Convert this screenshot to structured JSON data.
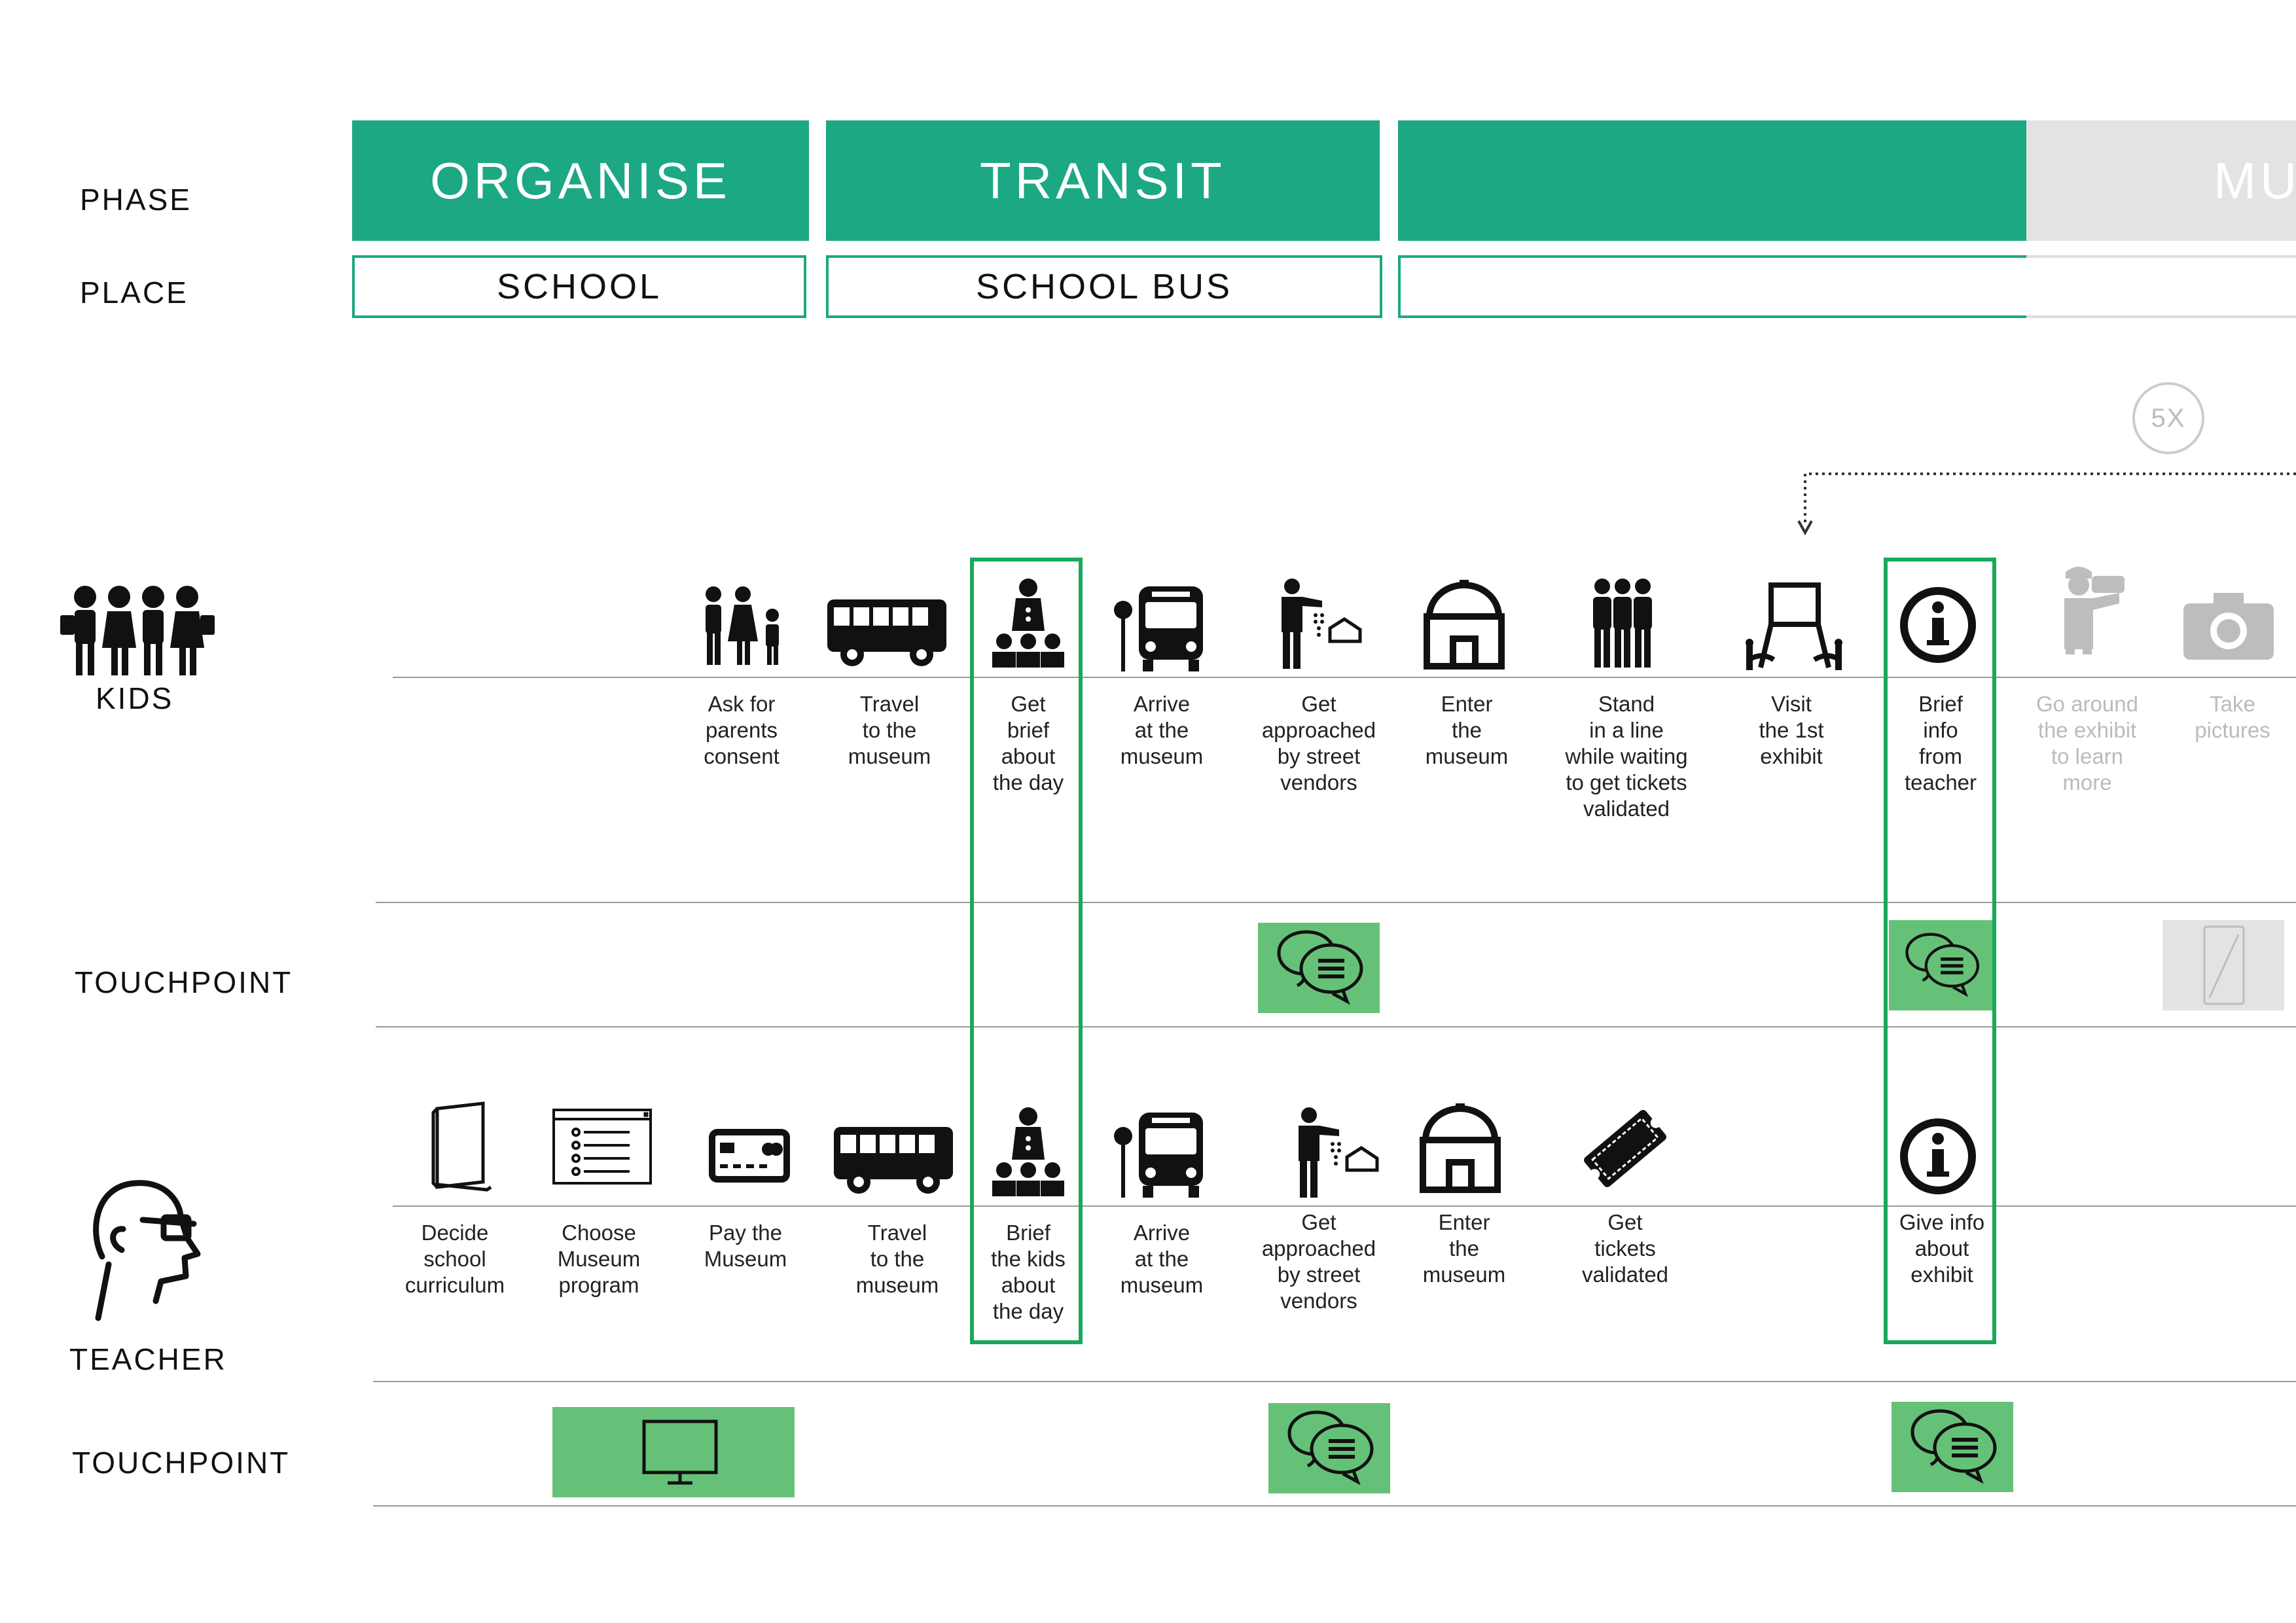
{
  "labels": {
    "phase": "PHASE",
    "place": "PLACE",
    "kids": "KIDS",
    "touchpoint": "TOUCHPOINT",
    "teacher": "TEACHER"
  },
  "phases": [
    "ORGANISE",
    "TRANSIT",
    "",
    "MUS"
  ],
  "places": [
    "SCHOOL",
    "SCHOOL BUS",
    ""
  ],
  "repeat_badge": "5X",
  "kids_steps": [
    "Ask for\nparents\nconsent",
    "Travel\nto the\nmuseum",
    "Get\nbrief\nabout\nthe day",
    "Arrive\nat the\nmuseum",
    "Get\napproached\nby street\nvendors",
    "Enter\nthe\nmuseum",
    "Stand\nin a line\nwhile waiting\nto get tickets\nvalidated",
    "Visit\nthe 1st\nexhibit",
    "Brief\ninfo\nfrom\nteacher",
    "Go around\nthe exhibit\nto learn\nmore",
    "Take\npictures"
  ],
  "teacher_steps": [
    "Decide\nschool\ncurriculum",
    "Choose\nMuseum\nprogram",
    "Pay the\nMuseum",
    "Travel\nto the\nmuseum",
    "Brief\nthe kids\nabout\nthe day",
    "Arrive\nat the\nmuseum",
    "Get\napproached\nby street\nvendors",
    "Enter\nthe\nmuseum",
    "Get\ntickets\nvalidated",
    "Give info\nabout\nexhibit"
  ],
  "icons": {
    "kids": [
      "family-icon",
      "bus-icon",
      "guide-group-icon",
      "bus-stop-icon",
      "street-vendor-icon",
      "museum-icon",
      "queue-icon",
      "exhibit-icon",
      "info-icon",
      "photographer-icon",
      "camera-icon"
    ],
    "teacher": [
      "curriculum-book-icon",
      "program-list-icon",
      "credit-card-icon",
      "bus-icon",
      "guide-group-icon",
      "bus-stop-icon",
      "street-vendor-icon",
      "museum-icon",
      "ticket-icon",
      "info-icon"
    ],
    "touchpoints": [
      "chat-icon",
      "chat-icon",
      "phone-icon",
      "monitor-icon",
      "chat-icon",
      "chat-icon"
    ]
  },
  "colors": {
    "phase_green": "#1ca882",
    "touchpoint_green": "#66c178",
    "highlight_green": "#1aa85a",
    "muted_gray": "#e3e3e3"
  }
}
